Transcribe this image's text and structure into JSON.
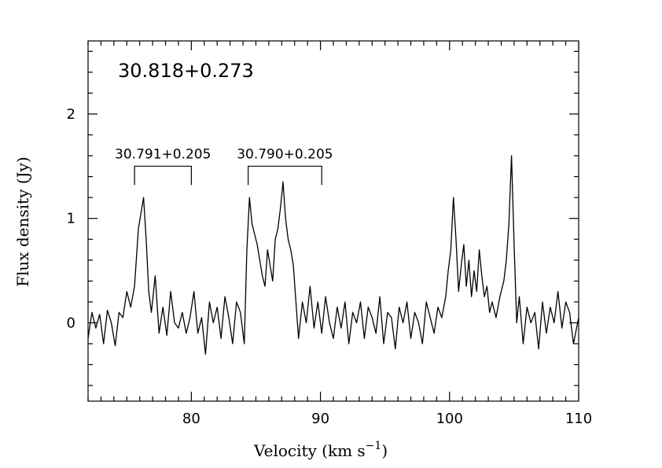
{
  "chart_data": {
    "type": "line",
    "title": "30.818+0.273",
    "xlabel": "Velocity (km s",
    "xlabel_sup": "−1",
    "xlabel_close": ")",
    "ylabel": "Flux density (Jy)",
    "xlim": [
      72,
      110
    ],
    "ylim": [
      -0.75,
      2.7
    ],
    "xticks": [
      80,
      90,
      100,
      110
    ],
    "xtick_labels": [
      "80",
      "90",
      "100",
      "110"
    ],
    "yticks": [
      0,
      1,
      2
    ],
    "ytick_labels": [
      "0",
      "1",
      "2"
    ],
    "grid": false,
    "annotations": [
      {
        "label": "30.791+0.205",
        "x_start": 75.6,
        "x_end": 80.0,
        "y_top": 1.5,
        "y_bottom": 1.32
      },
      {
        "label": "30.790+0.205",
        "x_start": 84.4,
        "x_end": 90.1,
        "y_top": 1.5,
        "y_bottom": 1.32
      }
    ],
    "series": [
      {
        "x": [
          72.0,
          72.3,
          72.6,
          72.9,
          73.2,
          73.5,
          73.8,
          74.1,
          74.4,
          74.7,
          75.0,
          75.3,
          75.6,
          75.9,
          76.1,
          76.3,
          76.5,
          76.7,
          76.9,
          77.2,
          77.5,
          77.8,
          78.1,
          78.4,
          78.7,
          79.0,
          79.3,
          79.6,
          79.9,
          80.2,
          80.5,
          80.8,
          81.1,
          81.4,
          81.7,
          82.0,
          82.3,
          82.6,
          82.9,
          83.2,
          83.5,
          83.8,
          84.1,
          84.3,
          84.5,
          84.7,
          84.9,
          85.1,
          85.3,
          85.5,
          85.7,
          85.9,
          86.1,
          86.3,
          86.5,
          86.7,
          86.9,
          87.1,
          87.3,
          87.5,
          87.7,
          87.9,
          88.1,
          88.3,
          88.6,
          88.9,
          89.2,
          89.5,
          89.8,
          90.1,
          90.4,
          90.7,
          91.0,
          91.3,
          91.6,
          91.9,
          92.2,
          92.5,
          92.8,
          93.1,
          93.4,
          93.7,
          94.0,
          94.3,
          94.6,
          94.9,
          95.2,
          95.5,
          95.8,
          96.1,
          96.4,
          96.7,
          97.0,
          97.3,
          97.6,
          97.9,
          98.2,
          98.5,
          98.8,
          99.1,
          99.4,
          99.7,
          99.9,
          100.1,
          100.3,
          100.5,
          100.7,
          100.9,
          101.1,
          101.3,
          101.5,
          101.7,
          101.9,
          102.1,
          102.3,
          102.5,
          102.7,
          102.9,
          103.1,
          103.3,
          103.6,
          103.9,
          104.2,
          104.4,
          104.6,
          104.8,
          105.0,
          105.2,
          105.4,
          105.7,
          106.0,
          106.3,
          106.6,
          106.9,
          107.2,
          107.5,
          107.8,
          108.1,
          108.4,
          108.7,
          109.0,
          109.3,
          109.6,
          110.0
        ],
        "y": [
          -0.15,
          0.1,
          -0.05,
          0.08,
          -0.2,
          0.12,
          0.0,
          -0.22,
          0.1,
          0.05,
          0.3,
          0.15,
          0.35,
          0.9,
          1.05,
          1.2,
          0.8,
          0.3,
          0.1,
          0.45,
          -0.1,
          0.15,
          -0.12,
          0.3,
          0.0,
          -0.05,
          0.1,
          -0.1,
          0.05,
          0.3,
          -0.1,
          0.05,
          -0.3,
          0.2,
          0.0,
          0.15,
          -0.15,
          0.25,
          0.05,
          -0.2,
          0.2,
          0.1,
          -0.2,
          0.7,
          1.2,
          0.95,
          0.85,
          0.75,
          0.6,
          0.45,
          0.35,
          0.7,
          0.55,
          0.4,
          0.8,
          0.9,
          1.1,
          1.35,
          1.0,
          0.8,
          0.7,
          0.55,
          0.2,
          -0.15,
          0.2,
          0.0,
          0.35,
          -0.05,
          0.2,
          -0.1,
          0.25,
          0.0,
          -0.15,
          0.15,
          -0.05,
          0.2,
          -0.2,
          0.1,
          0.0,
          0.2,
          -0.15,
          0.15,
          0.05,
          -0.1,
          0.25,
          -0.2,
          0.1,
          0.05,
          -0.25,
          0.15,
          0.0,
          0.2,
          -0.15,
          0.1,
          0.0,
          -0.2,
          0.2,
          0.05,
          -0.1,
          0.15,
          0.05,
          0.25,
          0.5,
          0.7,
          1.2,
          0.8,
          0.3,
          0.55,
          0.75,
          0.35,
          0.6,
          0.25,
          0.5,
          0.3,
          0.7,
          0.45,
          0.25,
          0.35,
          0.1,
          0.2,
          0.05,
          0.25,
          0.4,
          0.6,
          0.95,
          1.6,
          0.75,
          0.0,
          0.25,
          -0.2,
          0.15,
          0.0,
          0.1,
          -0.25,
          0.2,
          -0.1,
          0.15,
          0.0,
          0.3,
          -0.05,
          0.2,
          0.1,
          -0.2,
          0.05
        ]
      }
    ]
  }
}
